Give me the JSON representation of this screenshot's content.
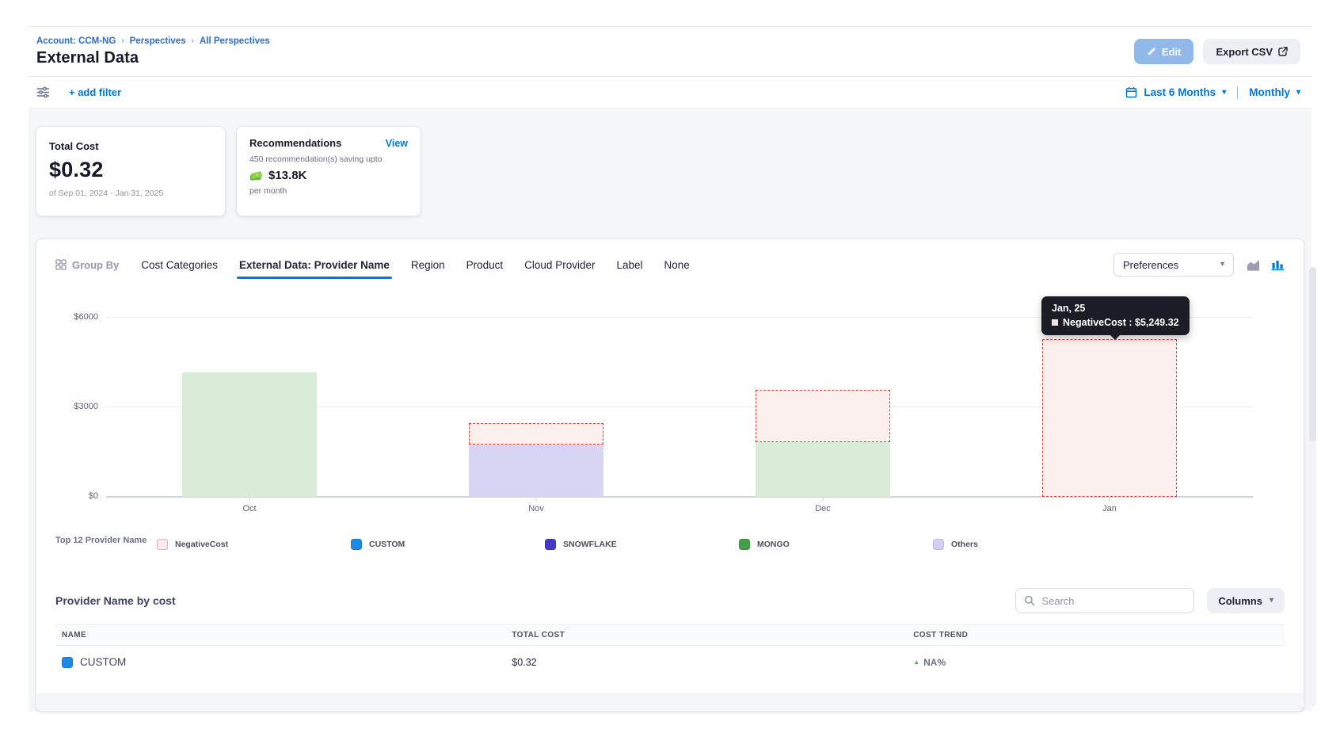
{
  "breadcrumb": {
    "items": [
      "Account: CCM-NG",
      "Perspectives",
      "All Perspectives"
    ]
  },
  "header": {
    "title": "External Data",
    "edit_label": "Edit",
    "export_label": "Export CSV"
  },
  "filter_bar": {
    "add_filter_label": "+ add filter",
    "date_range_label": "Last 6 Months",
    "granularity_label": "Monthly"
  },
  "cards": {
    "total_cost": {
      "title": "Total Cost",
      "value": "$0.32",
      "period": "of Sep 01, 2024 - Jan 31, 2025"
    },
    "recommendations": {
      "title": "Recommendations",
      "view_label": "View",
      "line1": "450 recommendation(s) saving upto",
      "savings": "$13.8K",
      "line2": "per month"
    }
  },
  "groupby": {
    "label": "Group By",
    "tabs": [
      {
        "label": "Cost Categories",
        "active": false
      },
      {
        "label": "External Data: Provider Name",
        "active": true
      },
      {
        "label": "Region",
        "active": false
      },
      {
        "label": "Product",
        "active": false
      },
      {
        "label": "Cloud Provider",
        "active": false
      },
      {
        "label": "Label",
        "active": false
      },
      {
        "label": "None",
        "active": false
      }
    ],
    "preferences_label": "Preferences"
  },
  "chart_data": {
    "type": "bar",
    "stacked": true,
    "title": "",
    "xlabel": "",
    "ylabel": "",
    "categories": [
      "Oct",
      "Nov",
      "Dec",
      "Jan"
    ],
    "series": [
      {
        "name": "MONGO",
        "fill": "#d9ecd7",
        "values": [
          4160,
          0,
          1815,
          0
        ]
      },
      {
        "name": "SNOWFLAKE",
        "fill": "#d8d4f4",
        "values": [
          0,
          1740,
          0,
          0
        ]
      },
      {
        "name": "NegativeCost",
        "fill": "#fcf0ee",
        "border": "#d9453a",
        "dashed": true,
        "values": [
          0,
          720,
          1750,
          5249.32
        ]
      }
    ],
    "ylim": [
      0,
      6000
    ],
    "yticks": [
      "$6000",
      "$3000",
      "$0"
    ],
    "grid": true,
    "legend_position": "bottom",
    "tooltip": {
      "title": "Jan, 25",
      "text": "NegativeCost : $5,249.32"
    }
  },
  "legend": {
    "title": "Top 12 Provider Name",
    "items": [
      {
        "label": "NegativeCost",
        "color": "#f9ebe9",
        "border": "#e0b3ae"
      },
      {
        "label": "CUSTOM",
        "color": "#1e88e5"
      },
      {
        "label": "SNOWFLAKE",
        "color": "#453ac8"
      },
      {
        "label": "MONGO",
        "color": "#42a047"
      },
      {
        "label": "Others",
        "color": "#d3cef5"
      }
    ]
  },
  "table": {
    "title": "Provider Name by cost",
    "search_placeholder": "Search",
    "columns_label": "Columns",
    "headers": [
      "NAME",
      "TOTAL COST",
      "COST TREND"
    ],
    "rows": [
      {
        "name": "CUSTOM",
        "color": "#1e88e5",
        "total_cost": "$0.32",
        "trend": "NA%"
      }
    ]
  }
}
